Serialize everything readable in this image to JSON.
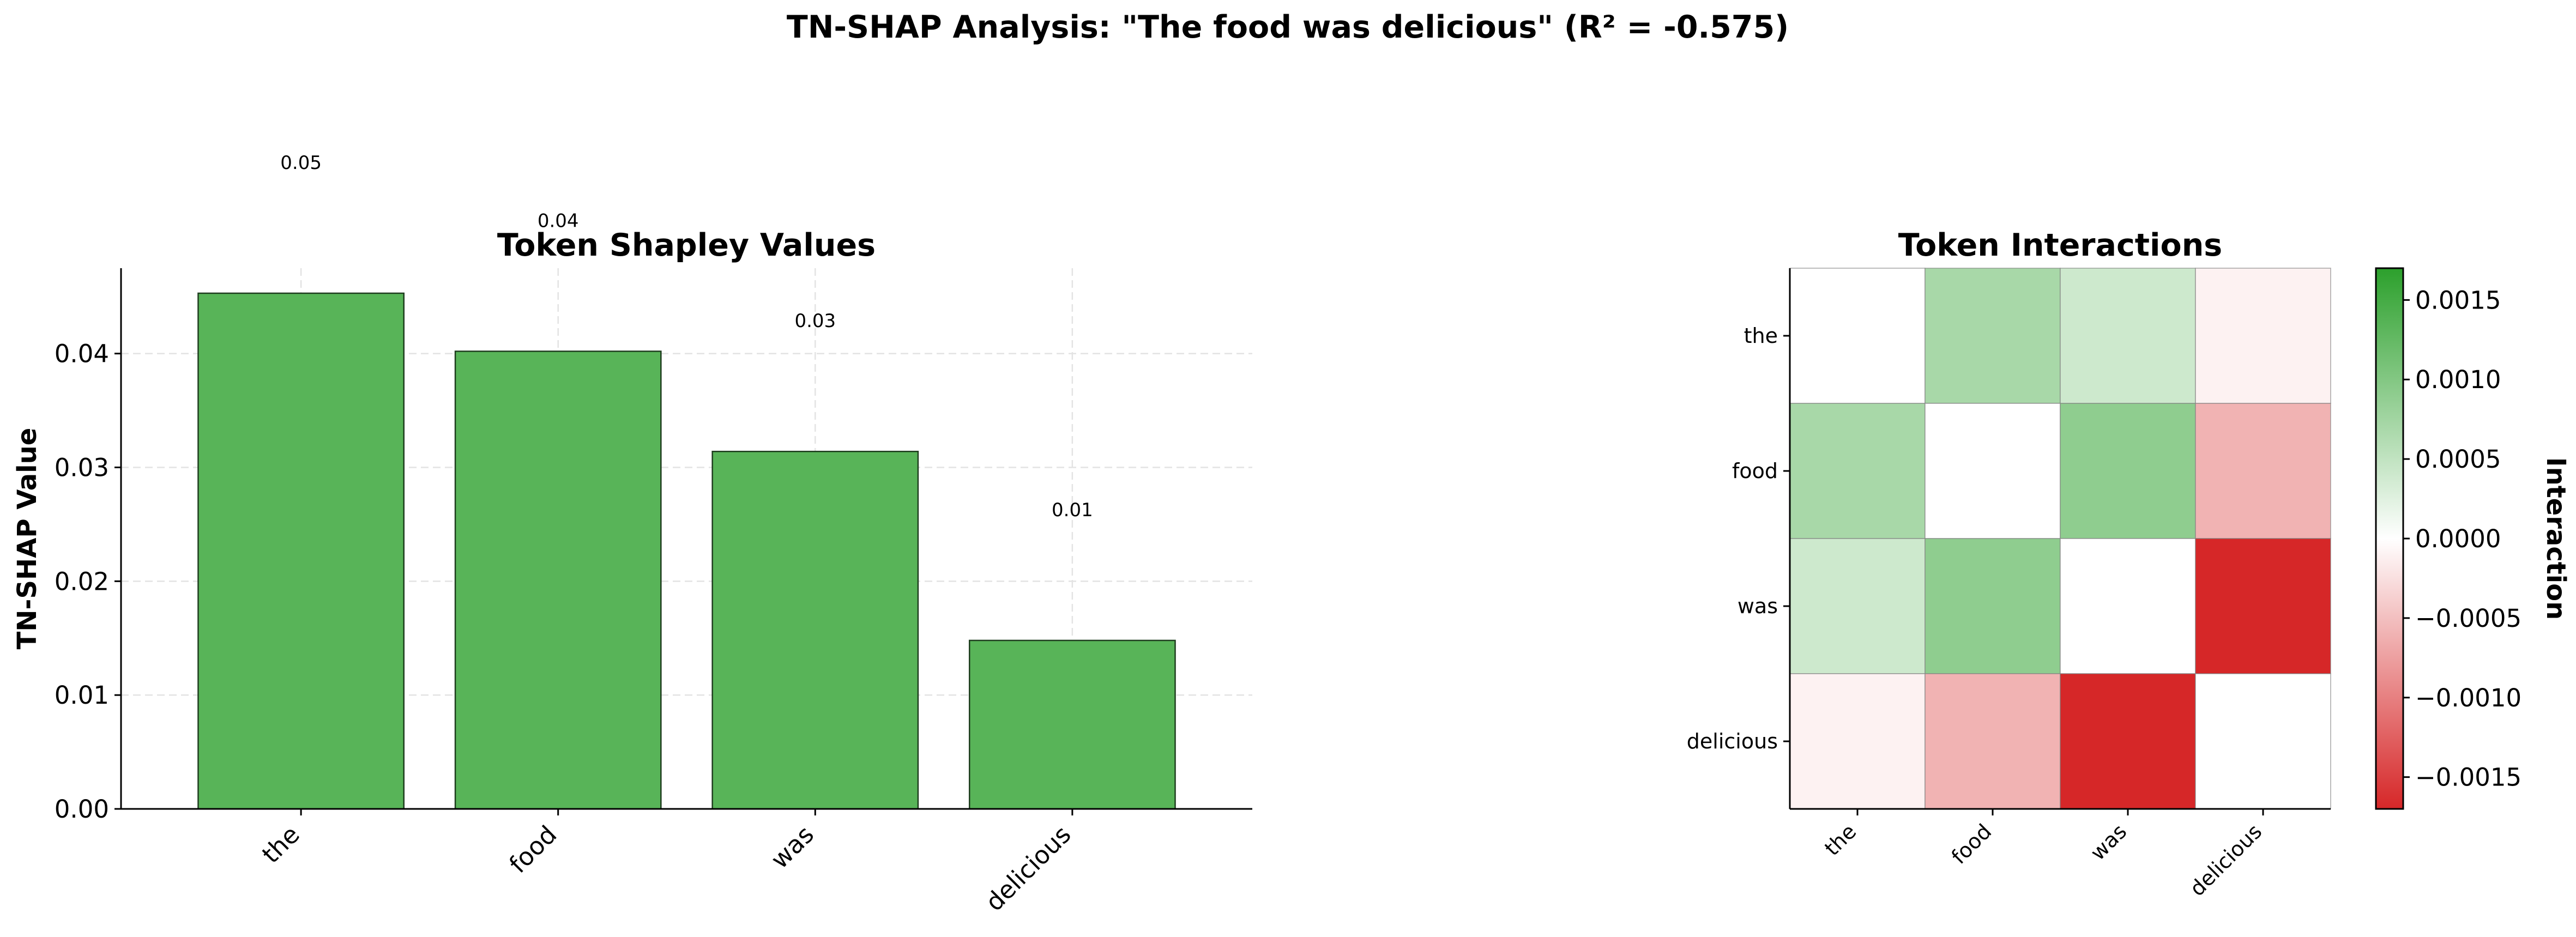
{
  "figure": {
    "title": "TN-SHAP Analysis: \"The food was delicious\" (R² = -0.575)"
  },
  "chart_data": [
    {
      "type": "bar",
      "title": "Token Shapley Values",
      "xlabel": "",
      "ylabel": "TN-SHAP Value",
      "categories": [
        "the",
        "food",
        "was",
        "delicious"
      ],
      "values": [
        0.0453,
        0.0402,
        0.0314,
        0.0148
      ],
      "value_labels": [
        "0.05",
        "0.04",
        "0.03",
        "0.01"
      ],
      "ylim": [
        0,
        0.0475
      ],
      "yticks": [
        0.0,
        0.01,
        0.02,
        0.03,
        0.04
      ],
      "ytick_labels": [
        "0.00",
        "0.01",
        "0.02",
        "0.03",
        "0.04"
      ],
      "grid": true,
      "bar_color": "#58b458",
      "bar_edge_color": "#1e3d1e"
    },
    {
      "type": "heatmap",
      "title": "Token Interactions",
      "x_categories": [
        "the",
        "food",
        "was",
        "delicious"
      ],
      "y_categories": [
        "the",
        "food",
        "was",
        "delicious"
      ],
      "values": [
        [
          0.0,
          0.0007,
          0.0004,
          -0.0001
        ],
        [
          0.0007,
          0.0,
          0.0009,
          -0.0006
        ],
        [
          0.0004,
          0.0009,
          0.0,
          -0.0017
        ],
        [
          -0.0001,
          -0.0006,
          -0.0017,
          0.0
        ]
      ],
      "colorbar": {
        "label": "Interaction",
        "range": [
          -0.0017,
          0.0017
        ],
        "ticks": [
          -0.0015,
          -0.001,
          -0.0005,
          0.0,
          0.0005,
          0.001,
          0.0015
        ],
        "tick_labels": [
          "−0.0015",
          "−0.0010",
          "−0.0005",
          "0.0000",
          "0.0005",
          "0.0010",
          "0.0015"
        ],
        "colors": {
          "negative": "#d62728",
          "zero": "#ffffff",
          "positive": "#2ca02c"
        }
      }
    }
  ]
}
